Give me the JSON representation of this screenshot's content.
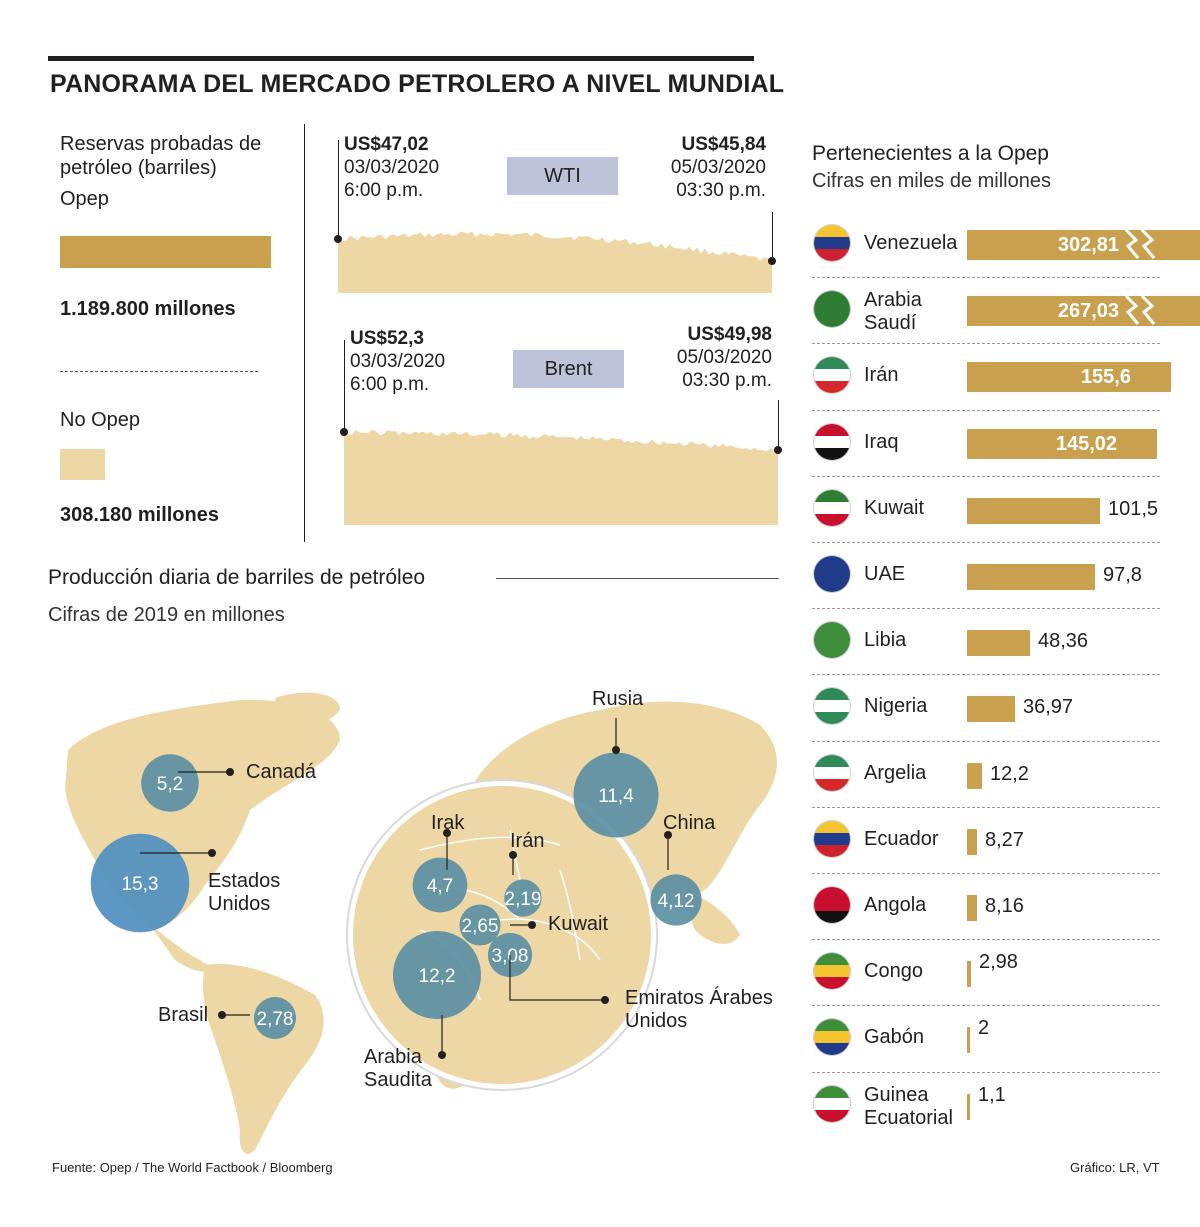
{
  "title": "PANORAMA DEL MERCADO PETROLERO A NIVEL MUNDIAL",
  "reserves": {
    "heading": "Reservas probadas de petróleo (barriles)",
    "opep_label": "Opep",
    "opep_value": "1.189.800 millones",
    "noopep_label": "No Opep",
    "noopep_value": "308.180 millones",
    "opep_color": "#c9a04e",
    "noopep_color": "#ecd7a5"
  },
  "wti": {
    "tag": "WTI",
    "start_price": "US$47,02",
    "start_date": "03/03/2020",
    "start_time": "6:00 p.m.",
    "end_price": "US$45,84",
    "end_date": "05/03/2020",
    "end_time": "03:30 p.m."
  },
  "brent": {
    "tag": "Brent",
    "start_price": "US$52,3",
    "start_date": "03/03/2020",
    "start_time": "6:00 p.m.",
    "end_price": "US$49,98",
    "end_date": "05/03/2020",
    "end_time": "03:30 p.m."
  },
  "production": {
    "heading": "Producción diaria de barriles de petróleo",
    "subheading": "Cifras de 2019 en millones",
    "items": [
      {
        "name": "Rusia",
        "value": "11,4"
      },
      {
        "name": "Canadá",
        "value": "5,2"
      },
      {
        "name": "Estados Unidos",
        "value": "15,3"
      },
      {
        "name": "China",
        "value": "4,12"
      },
      {
        "name": "Brasil",
        "value": "2,78"
      },
      {
        "name": "Irak",
        "value": "4,7"
      },
      {
        "name": "Irán",
        "value": "2,19"
      },
      {
        "name": "Kuwait",
        "value": "2,65"
      },
      {
        "name": "Emiratos Árabes Unidos",
        "value": "3,08"
      },
      {
        "name": "Arabia Saudita",
        "value": "12,2"
      }
    ]
  },
  "opep_members": {
    "heading": "Pertenecientes a la Opep",
    "subheading": "Cifras en miles de millones",
    "items": [
      {
        "name": "Venezuela",
        "value": "302,81"
      },
      {
        "name": "Arabia Saudí",
        "value": "267,03"
      },
      {
        "name": "Irán",
        "value": "155,6"
      },
      {
        "name": "Iraq",
        "value": "145,02"
      },
      {
        "name": "Kuwait",
        "value": "101,5"
      },
      {
        "name": "UAE",
        "value": "97,8"
      },
      {
        "name": "Libia",
        "value": "48,36"
      },
      {
        "name": "Nigeria",
        "value": "36,97"
      },
      {
        "name": "Argelia",
        "value": "12,2"
      },
      {
        "name": "Ecuador",
        "value": "8,27"
      },
      {
        "name": "Angola",
        "value": "8,16"
      },
      {
        "name": "Congo",
        "value": "2,98"
      },
      {
        "name": "Gabón",
        "value": "2"
      },
      {
        "name": "Guinea Ecuatorial",
        "value": "1,1"
      }
    ]
  },
  "chart_data": [
    {
      "type": "bar",
      "title": "Pertenecientes a la Opep",
      "subtitle": "Cifras en miles de millones",
      "categories": [
        "Venezuela",
        "Arabia Saudí",
        "Irán",
        "Iraq",
        "Kuwait",
        "UAE",
        "Libia",
        "Nigeria",
        "Argelia",
        "Ecuador",
        "Angola",
        "Congo",
        "Gabón",
        "Guinea Ecuatorial"
      ],
      "values": [
        302.81,
        267.03,
        155.6,
        145.02,
        101.5,
        97.8,
        48.36,
        36.97,
        12.2,
        8.27,
        8.16,
        2.98,
        2,
        1.1
      ],
      "orientation": "horizontal",
      "axis_break": [
        "Venezuela",
        "Arabia Saudí"
      ]
    },
    {
      "type": "area",
      "title": "WTI",
      "x": [
        "03/03/2020 6:00 p.m.",
        "05/03/2020 03:30 p.m."
      ],
      "y": [
        47.02,
        45.84
      ]
    },
    {
      "type": "area",
      "title": "Brent",
      "x": [
        "03/03/2020 6:00 p.m.",
        "05/03/2020 03:30 p.m."
      ],
      "y": [
        52.3,
        49.98
      ]
    },
    {
      "type": "scatter",
      "title": "Producción diaria de barriles de petróleo",
      "subtitle": "Cifras de 2019 en millones",
      "categories": [
        "Rusia",
        "Canadá",
        "Estados Unidos",
        "China",
        "Brasil",
        "Irak",
        "Irán",
        "Kuwait",
        "Emiratos Árabes Unidos",
        "Arabia Saudita"
      ],
      "values": [
        11.4,
        5.2,
        15.3,
        4.12,
        2.78,
        4.7,
        2.19,
        2.65,
        3.08,
        12.2
      ]
    },
    {
      "type": "bar",
      "title": "Reservas probadas de petróleo (barriles)",
      "categories": [
        "Opep",
        "No Opep"
      ],
      "values": [
        1189800,
        308180
      ]
    }
  ],
  "footer": {
    "source": "Fuente: Opep / The World Factbook / Bloomberg",
    "credit": "Gráfico: LR, VT"
  },
  "colors": {
    "bar": "#c9a04e",
    "map_land": "#ecd7a5",
    "bubble": "#5b8fa3",
    "tag_bg": "#bcc3d9"
  }
}
